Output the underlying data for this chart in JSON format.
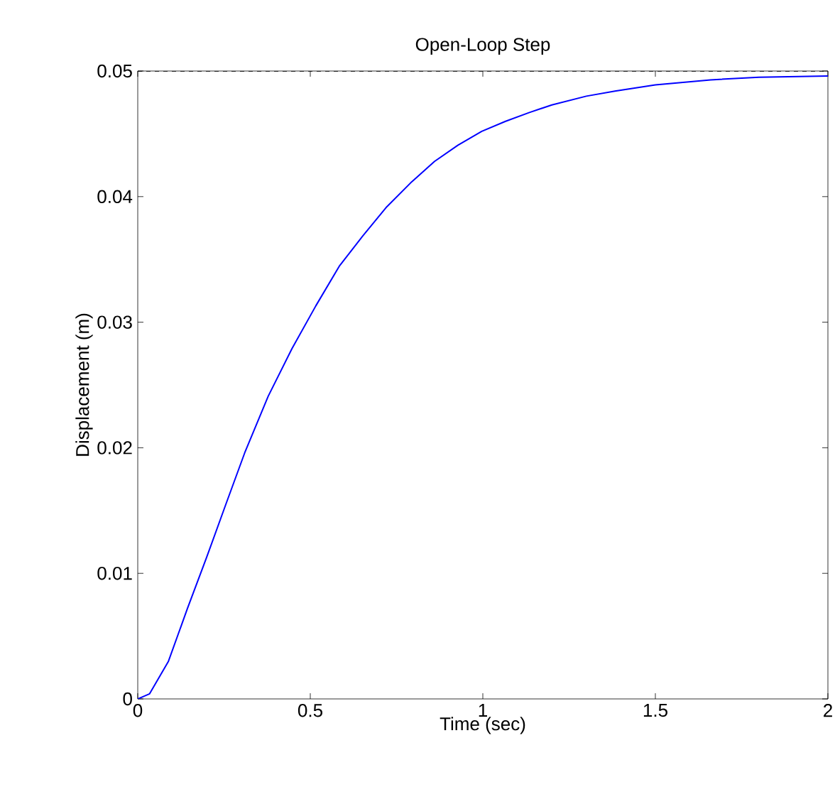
{
  "chart_data": {
    "type": "line",
    "title": "Open-Loop Step",
    "xlabel": "Time (sec)",
    "ylabel": "Displacement (m)",
    "series": [
      {
        "color": "#0000ff",
        "x": [
          0,
          0.034,
          0.089,
          0.144,
          0.2,
          0.254,
          0.31,
          0.378,
          0.447,
          0.516,
          0.585,
          0.653,
          0.722,
          0.791,
          0.86,
          0.928,
          0.997,
          1.066,
          1.135,
          1.2,
          1.3,
          1.383,
          1.5,
          1.66,
          1.8,
          2.0
        ],
        "values": [
          0,
          0.0004,
          0.003,
          0.0072,
          0.0113,
          0.0154,
          0.0196,
          0.0241,
          0.0279,
          0.0313,
          0.0345,
          0.0369,
          0.0392,
          0.0411,
          0.0428,
          0.0441,
          0.0452,
          0.046,
          0.0467,
          0.0473,
          0.048,
          0.0484,
          0.0489,
          0.0493,
          0.0495,
          0.0496
        ]
      }
    ],
    "xlim": [
      0,
      2
    ],
    "ylim": [
      0,
      0.05
    ],
    "xticks": [
      0,
      0.5,
      1,
      1.5,
      2
    ],
    "yticks": [
      0,
      0.01,
      0.02,
      0.03,
      0.04,
      0.05
    ],
    "ref_lines": [
      {
        "axis": "y",
        "value": 0.05,
        "color": "#000000",
        "line_style": "dashed"
      }
    ],
    "grid": false,
    "marker": "none",
    "line_style": "solid"
  }
}
